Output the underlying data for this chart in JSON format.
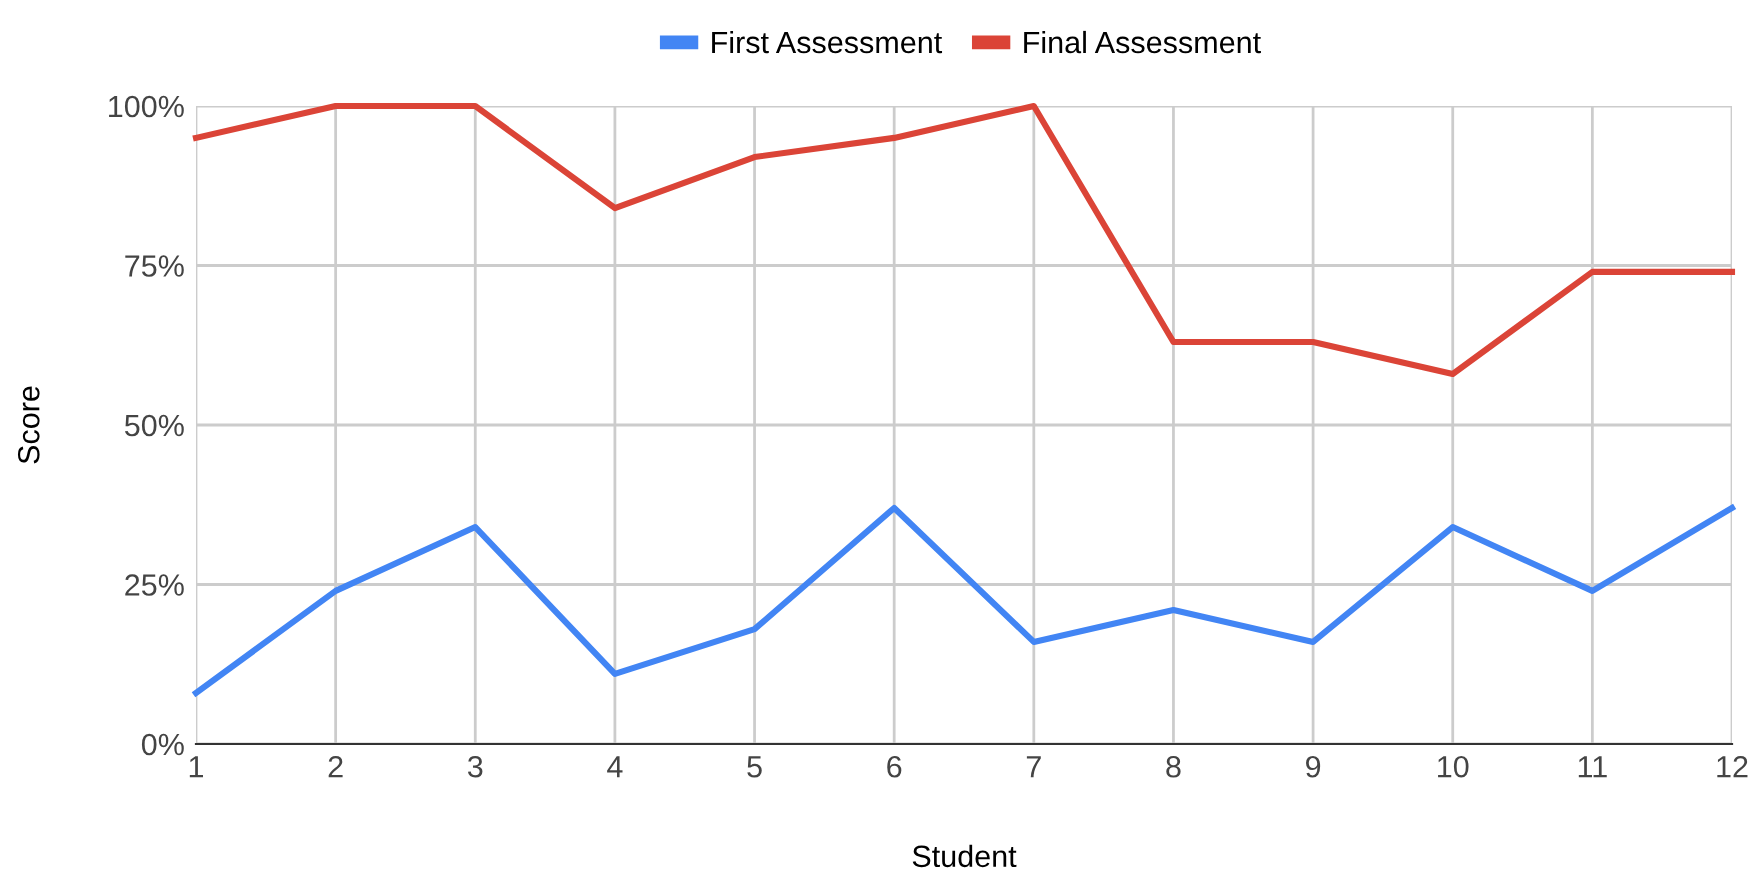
{
  "chart_data": {
    "type": "line",
    "xlabel": "Student",
    "ylabel": "Score",
    "x": [
      1,
      2,
      3,
      4,
      5,
      6,
      7,
      8,
      9,
      10,
      11,
      12
    ],
    "series": [
      {
        "name": "First Assessment",
        "color": "#4285f4",
        "values": [
          8,
          24,
          34,
          11,
          18,
          37,
          16,
          21,
          16,
          34,
          24,
          37
        ]
      },
      {
        "name": "Final Assessment",
        "color": "#db4437",
        "values": [
          95,
          100,
          100,
          84,
          92,
          95,
          100,
          63,
          63,
          58,
          74,
          74
        ]
      }
    ],
    "xlim": [
      1,
      12
    ],
    "xticks": [
      1,
      2,
      3,
      4,
      5,
      6,
      7,
      8,
      9,
      10,
      11,
      12
    ],
    "ylim": [
      0,
      100
    ],
    "yticks": [
      {
        "value": 0,
        "label": "0%"
      },
      {
        "value": 25,
        "label": "25%"
      },
      {
        "value": 50,
        "label": "50%"
      },
      {
        "value": 75,
        "label": "75%"
      },
      {
        "value": 100,
        "label": "100%"
      }
    ],
    "grid": true,
    "legend": "top",
    "marker": "none",
    "line_style": "solid"
  }
}
